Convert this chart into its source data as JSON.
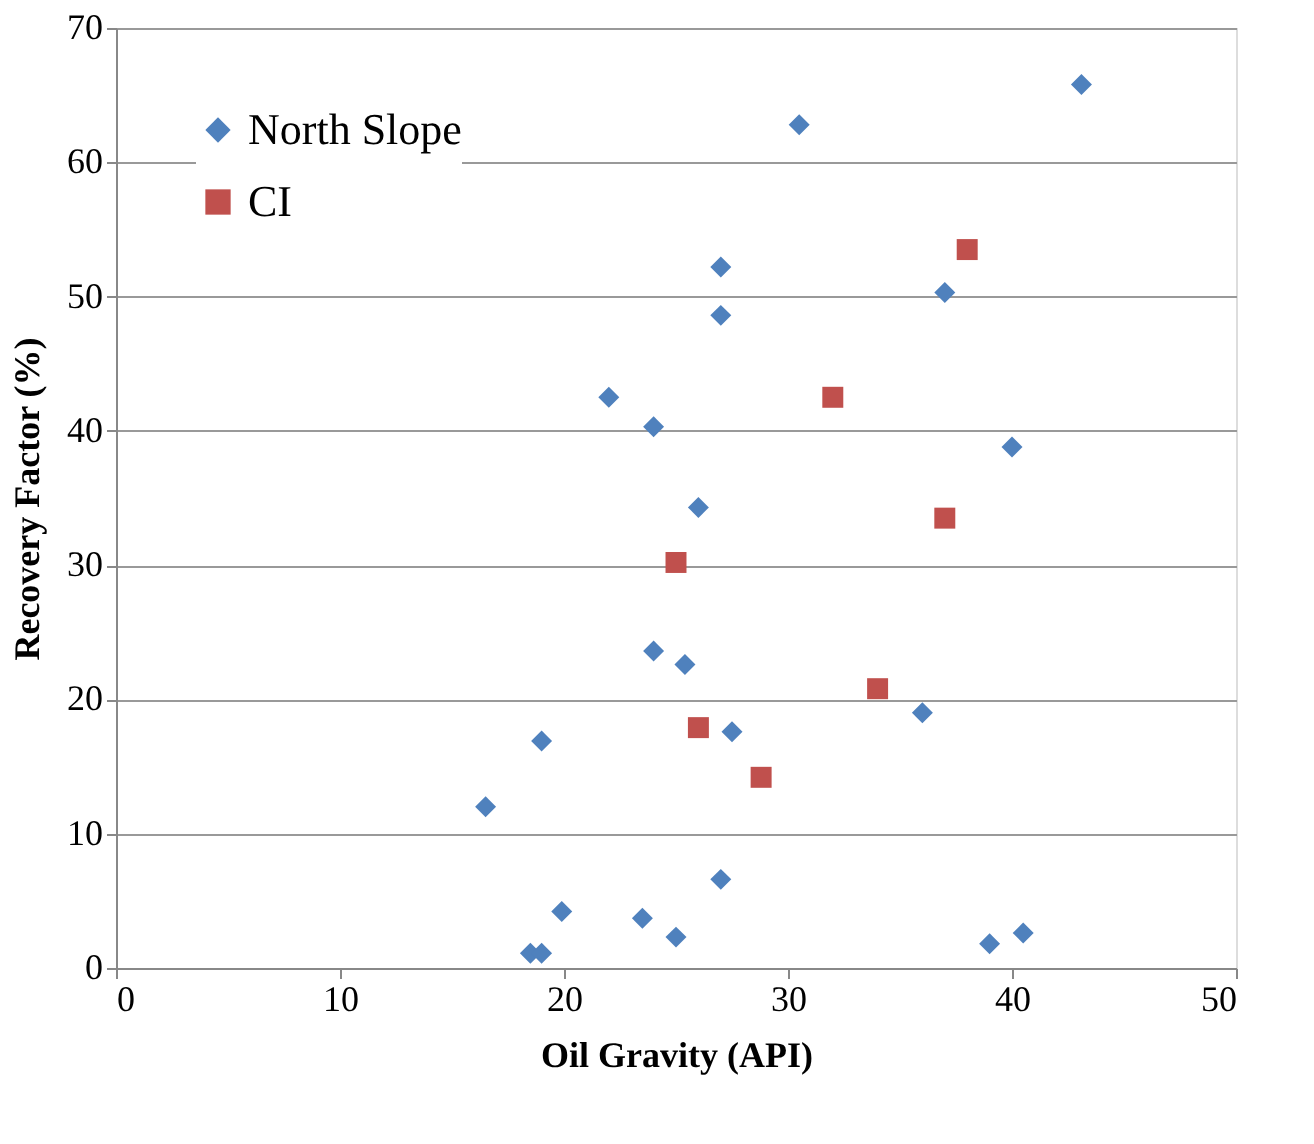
{
  "chart_data": {
    "type": "scatter",
    "xlabel": "Oil Gravity (API)",
    "ylabel": "Recovery Factor (%)",
    "xlim": [
      0,
      50
    ],
    "xticks": [
      0,
      10,
      20,
      30,
      40,
      50
    ],
    "ylim": [
      0,
      70
    ],
    "yticks": [
      0,
      10,
      20,
      30,
      40,
      50,
      60,
      70
    ],
    "grid": "y",
    "legend": "top left",
    "series": [
      {
        "name": "North Slope",
        "color": "#4f81bd",
        "marker": "diamond",
        "x": [
          43.1,
          30.5,
          27.0,
          27.0,
          37.0,
          22.0,
          24.0,
          40.0,
          26.0,
          24.0,
          25.4,
          19.0,
          16.5,
          27.5,
          36.0,
          27.0,
          19.9,
          23.5,
          25.0,
          18.5,
          19.0,
          39.0,
          40.5
        ],
        "values": [
          65.8,
          62.8,
          52.2,
          48.6,
          50.3,
          42.5,
          40.3,
          38.8,
          34.3,
          23.6,
          22.6,
          16.9,
          12.0,
          17.6,
          19.0,
          6.6,
          4.2,
          3.7,
          2.3,
          1.1,
          1.1,
          1.8,
          2.6
        ]
      },
      {
        "name": "CI",
        "color": "#c0504d",
        "marker": "square",
        "x": [
          38.0,
          32.0,
          37.0,
          25.0,
          26.0,
          28.8,
          34.0
        ],
        "values": [
          53.5,
          42.5,
          33.5,
          30.2,
          17.9,
          14.2,
          20.8
        ]
      }
    ]
  }
}
